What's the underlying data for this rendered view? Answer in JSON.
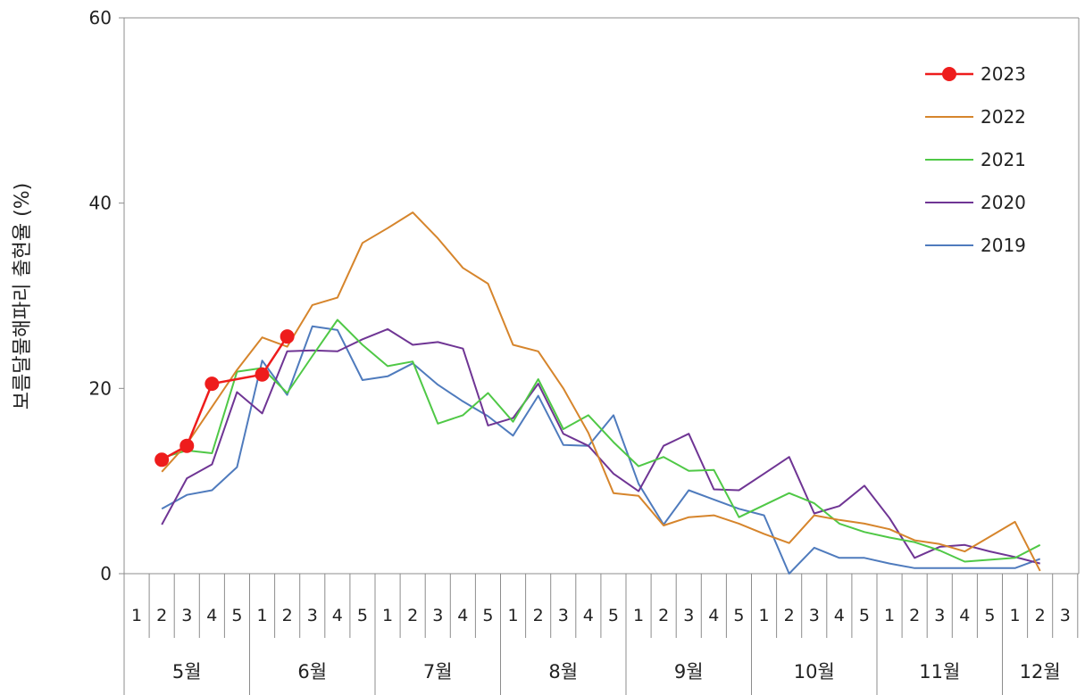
{
  "chart_data": {
    "type": "line",
    "title": "",
    "ylabel": "보름달물해파리 출현율 (%)",
    "xlabel": "",
    "ylim": [
      0,
      60
    ],
    "yticks": [
      0,
      20,
      40,
      60
    ],
    "months": [
      "5월",
      "6월",
      "7월",
      "8월",
      "9월",
      "10월",
      "11월",
      "12월"
    ],
    "week_labels": [
      "1",
      "2",
      "3",
      "4",
      "5",
      "1",
      "2",
      "3",
      "4",
      "5",
      "1",
      "2",
      "3",
      "4",
      "5",
      "1",
      "2",
      "3",
      "4",
      "5",
      "1",
      "2",
      "3",
      "4",
      "5",
      "1",
      "2",
      "3",
      "4",
      "5",
      "1",
      "2",
      "3",
      "4",
      "5",
      "1",
      "2",
      "3"
    ],
    "legend_position": "top-right",
    "series": [
      {
        "name": "2023",
        "color": "#ee1c1c",
        "marker": true,
        "values": [
          null,
          12.3,
          13.8,
          20.5,
          null,
          21.5,
          25.6
        ]
      },
      {
        "name": "2022",
        "color": "#d6852c",
        "marker": false,
        "values": [
          null,
          11,
          14,
          18,
          22,
          25.5,
          24.5,
          29,
          29.8,
          35.7,
          37.3,
          39,
          36.2,
          33,
          31.3,
          24.7,
          24,
          20,
          15.2,
          8.7,
          8.4,
          5.2,
          6.1,
          6.3,
          5.4,
          4.3,
          3.3,
          6.3,
          5.8,
          5.4,
          4.8,
          3.6,
          3.2,
          2.4,
          4,
          5.6,
          0.3
        ]
      },
      {
        "name": "2021",
        "color": "#4fc846",
        "marker": false,
        "values": [
          null,
          12.5,
          13.3,
          13,
          21.8,
          22.2,
          19.5,
          23.5,
          27.4,
          24.7,
          22.4,
          22.9,
          16.2,
          17.1,
          19.5,
          16.4,
          21,
          15.6,
          17.1,
          14.2,
          11.6,
          12.6,
          11.1,
          11.2,
          6.1,
          7.4,
          8.7,
          7.6,
          5.4,
          4.5,
          3.9,
          3.4,
          2.5,
          1.3,
          1.5,
          1.7,
          3.1
        ]
      },
      {
        "name": "2020",
        "color": "#6f3594",
        "marker": false,
        "values": [
          null,
          5.3,
          10.3,
          11.8,
          19.6,
          17.3,
          24,
          24.1,
          24,
          25.3,
          26.4,
          24.7,
          25,
          24.3,
          16,
          16.8,
          20.5,
          15.1,
          13.8,
          10.8,
          8.9,
          13.8,
          15.1,
          9.1,
          9,
          10.8,
          12.6,
          6.5,
          7.3,
          9.5,
          6,
          1.7,
          2.9,
          3.1,
          2.4,
          1.8,
          1.1
        ]
      },
      {
        "name": "2019",
        "color": "#4f7bbd",
        "marker": false,
        "values": [
          null,
          7,
          8.5,
          9,
          11.5,
          23,
          19.3,
          26.7,
          26.3,
          20.9,
          21.3,
          22.7,
          20.4,
          18.6,
          17,
          14.9,
          19.2,
          13.9,
          13.8,
          17.1,
          9.7,
          5.3,
          9,
          8,
          7,
          6.3,
          0,
          2.8,
          1.7,
          1.7,
          1.1,
          0.6,
          0.6,
          0.6,
          0.6,
          0.6,
          1.6
        ]
      }
    ]
  }
}
